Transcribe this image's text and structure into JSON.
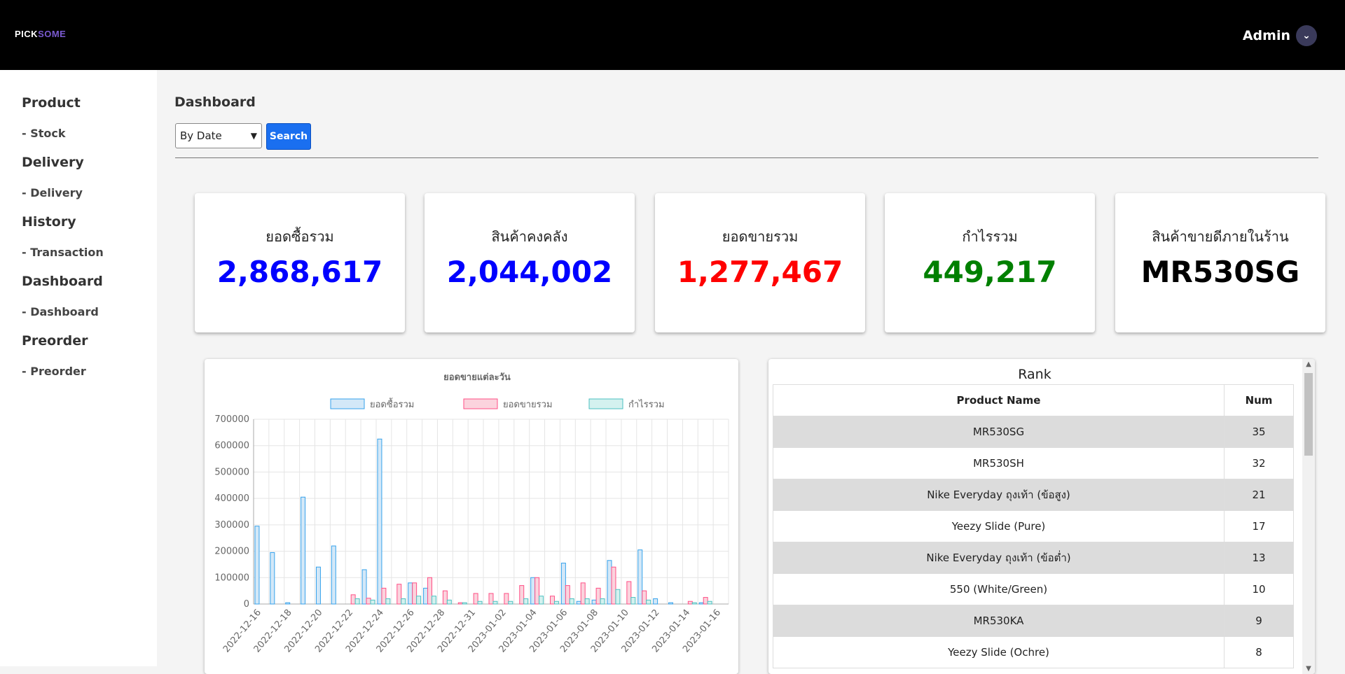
{
  "header": {
    "logo_main": "PICK",
    "logo_accent": "SOME",
    "user_label": "Admin",
    "user_icon": "chevron-down-icon"
  },
  "sidebar": {
    "sections": [
      {
        "title": "Product",
        "sub": "- Stock"
      },
      {
        "title": "Delivery",
        "sub": "- Delivery"
      },
      {
        "title": "History",
        "sub": "- Transaction"
      },
      {
        "title": "Dashboard",
        "sub": "- Dashboard"
      },
      {
        "title": "Preorder",
        "sub": "- Preorder"
      }
    ]
  },
  "main": {
    "title": "Dashboard",
    "filter_value": "By Date",
    "search_label": "Search"
  },
  "cards": [
    {
      "label": "ยอดซื้อรวม",
      "value": "2,868,617",
      "color": "#0000ff"
    },
    {
      "label": "สินค้าคงคลัง",
      "value": "2,044,002",
      "color": "#0000ff"
    },
    {
      "label": "ยอดขายรวม",
      "value": "1,277,467",
      "color": "#ff0000"
    },
    {
      "label": "กำไรรวม",
      "value": "449,217",
      "color": "#008000"
    },
    {
      "label": "สินค้าขายดีภายในร้าน",
      "value": "MR530SG",
      "color": "#000000"
    }
  ],
  "chart_data": {
    "type": "bar",
    "title": "ยอดขายแต่ละวัน",
    "ylim": [
      0,
      700000
    ],
    "yticks": [
      "0",
      "100000",
      "200000",
      "300000",
      "400000",
      "500000",
      "600000",
      "700000"
    ],
    "categories": [
      "2022-12-16",
      "2022-12-17",
      "2022-12-18",
      "2022-12-19",
      "2022-12-20",
      "2022-12-21",
      "2022-12-22",
      "2022-12-23",
      "2022-12-24",
      "2022-12-25",
      "2022-12-26",
      "2022-12-27",
      "2022-12-28",
      "2022-12-29",
      "2022-12-31",
      "2023-01-01",
      "2023-01-02",
      "2023-01-03",
      "2023-01-04",
      "2023-01-05",
      "2023-01-06",
      "2023-01-07",
      "2023-01-08",
      "2023-01-09",
      "2023-01-10",
      "2023-01-11",
      "2023-01-12",
      "2023-01-13",
      "2023-01-14",
      "2023-01-15",
      "2023-01-16"
    ],
    "tick_labels": [
      "2022-12-16",
      "2022-12-18",
      "2022-12-20",
      "2022-12-22",
      "2022-12-24",
      "2022-12-26",
      "2022-12-28",
      "2022-12-31",
      "2023-01-02",
      "2023-01-04",
      "2023-01-06",
      "2023-01-08",
      "2023-01-10",
      "2023-01-12",
      "2023-01-14",
      "2023-01-16"
    ],
    "series": [
      {
        "name": "ยอดซื้อรวม",
        "fill": "#d3e8f8",
        "stroke": "#36a2eb",
        "values": [
          295000,
          195000,
          5000,
          405000,
          140000,
          220000,
          0,
          130000,
          625000,
          0,
          80000,
          60000,
          0,
          0,
          0,
          0,
          0,
          0,
          100000,
          0,
          155000,
          10000,
          15000,
          165000,
          0,
          205000,
          20000,
          5000,
          0,
          5000,
          0
        ]
      },
      {
        "name": "ยอดขายรวม",
        "fill": "#fbd3dd",
        "stroke": "#ff4f86",
        "values": [
          0,
          0,
          0,
          0,
          0,
          0,
          35000,
          22000,
          60000,
          75000,
          80000,
          100000,
          50000,
          5000,
          40000,
          40000,
          40000,
          70000,
          100000,
          30000,
          70000,
          80000,
          60000,
          140000,
          85000,
          50000,
          0,
          0,
          10000,
          25000,
          0
        ]
      },
      {
        "name": "กำไรรวม",
        "fill": "#d4f1ef",
        "stroke": "#4bc0c0",
        "values": [
          0,
          0,
          0,
          0,
          0,
          0,
          20000,
          15000,
          20000,
          20000,
          30000,
          30000,
          15000,
          5000,
          10000,
          10000,
          10000,
          20000,
          30000,
          10000,
          20000,
          20000,
          20000,
          55000,
          25000,
          15000,
          0,
          0,
          5000,
          10000,
          0
        ]
      }
    ]
  },
  "rank": {
    "title": "Rank",
    "columns": [
      "Product Name",
      "Num"
    ],
    "rows": [
      {
        "name": "MR530SG",
        "num": "35"
      },
      {
        "name": "MR530SH",
        "num": "32"
      },
      {
        "name": "Nike Everyday ถุงเท้า (ข้อสูง)",
        "num": "21"
      },
      {
        "name": "Yeezy Slide (Pure)",
        "num": "17"
      },
      {
        "name": "Nike Everyday ถุงเท้า (ข้อต่ำ)",
        "num": "13"
      },
      {
        "name": "550 (White/Green)",
        "num": "10"
      },
      {
        "name": "MR530KA",
        "num": "9"
      },
      {
        "name": "Yeezy Slide (Ochre)",
        "num": "8"
      }
    ]
  }
}
